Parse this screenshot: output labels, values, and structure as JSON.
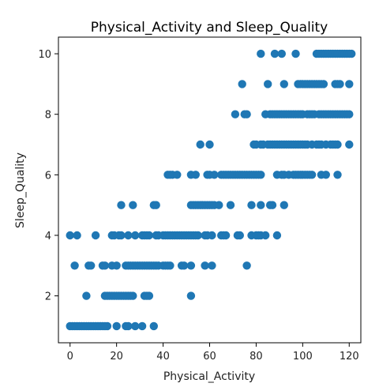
{
  "chart_data": {
    "type": "scatter",
    "title": "Physical_Activity and Sleep_Quality",
    "xlabel": "Physical_Activity",
    "ylabel": "Sleep_Quality",
    "xlim": [
      -5,
      125
    ],
    "ylim": [
      0.45,
      10.55
    ],
    "xticks": [
      0,
      20,
      40,
      60,
      80,
      100,
      120
    ],
    "yticks": [
      2,
      4,
      6,
      8,
      10
    ],
    "grid": false,
    "marker_color": "#1f77b4",
    "rows": [
      {
        "y": 1,
        "x": [
          0,
          1,
          2,
          3,
          4,
          5,
          6,
          7,
          8,
          9,
          10,
          11,
          12,
          13,
          14,
          15,
          16,
          20,
          24,
          25,
          28,
          31,
          36
        ]
      },
      {
        "y": 2,
        "x": [
          7,
          15,
          16,
          17,
          18,
          19,
          20,
          21,
          22,
          23,
          24,
          25,
          26,
          27,
          32,
          33,
          34,
          52
        ]
      },
      {
        "y": 3,
        "x": [
          2,
          8,
          9,
          14,
          15,
          18,
          20,
          24,
          25,
          26,
          27,
          28,
          29,
          30,
          31,
          32,
          33,
          34,
          35,
          36,
          37,
          38,
          40,
          41,
          42,
          43,
          48,
          49,
          52,
          58,
          61,
          76
        ]
      },
      {
        "y": 4,
        "x": [
          0,
          3,
          11,
          18,
          19,
          21,
          22,
          25,
          28,
          31,
          32,
          33,
          34,
          37,
          38,
          40,
          41,
          42,
          43,
          44,
          45,
          46,
          47,
          48,
          49,
          50,
          51,
          52,
          53,
          54,
          55,
          58,
          59,
          61,
          65,
          66,
          67,
          72,
          73,
          78,
          80,
          81,
          82,
          84,
          89
        ]
      },
      {
        "y": 5,
        "x": [
          22,
          27,
          36,
          37,
          52,
          53,
          54,
          55,
          56,
          57,
          58,
          59,
          60,
          61,
          62,
          64,
          69,
          78,
          82,
          86,
          87,
          92
        ]
      },
      {
        "y": 6,
        "x": [
          42,
          43,
          44,
          46,
          52,
          54,
          59,
          60,
          62,
          65,
          66,
          67,
          68,
          69,
          70,
          71,
          72,
          73,
          74,
          75,
          76,
          77,
          78,
          79,
          80,
          81,
          82,
          89,
          91,
          92,
          94,
          96,
          97,
          98,
          99,
          100,
          101,
          102,
          103,
          104,
          108,
          110,
          115
        ]
      },
      {
        "y": 7,
        "x": [
          56,
          60,
          79,
          80,
          82,
          83,
          85,
          86,
          87,
          88,
          89,
          90,
          91,
          92,
          93,
          94,
          95,
          96,
          97,
          98,
          99,
          100,
          101,
          102,
          104,
          106,
          107,
          108,
          110,
          112,
          113,
          114,
          115,
          120
        ]
      },
      {
        "y": 8,
        "x": [
          71,
          75,
          76,
          84,
          86,
          87,
          88,
          89,
          90,
          91,
          92,
          93,
          94,
          95,
          96,
          97,
          98,
          99,
          100,
          102,
          103,
          104,
          105,
          107,
          108,
          109,
          110,
          111,
          112,
          113,
          114,
          115,
          116,
          117,
          118,
          119,
          120
        ]
      },
      {
        "y": 9,
        "x": [
          74,
          85,
          92,
          98,
          99,
          100,
          101,
          102,
          103,
          104,
          105,
          106,
          107,
          108,
          109,
          114,
          115,
          116,
          120
        ]
      },
      {
        "y": 10,
        "x": [
          82,
          88,
          91,
          97,
          106,
          107,
          108,
          109,
          110,
          111,
          112,
          113,
          114,
          115,
          116,
          117,
          118,
          119,
          120,
          121
        ]
      }
    ]
  }
}
